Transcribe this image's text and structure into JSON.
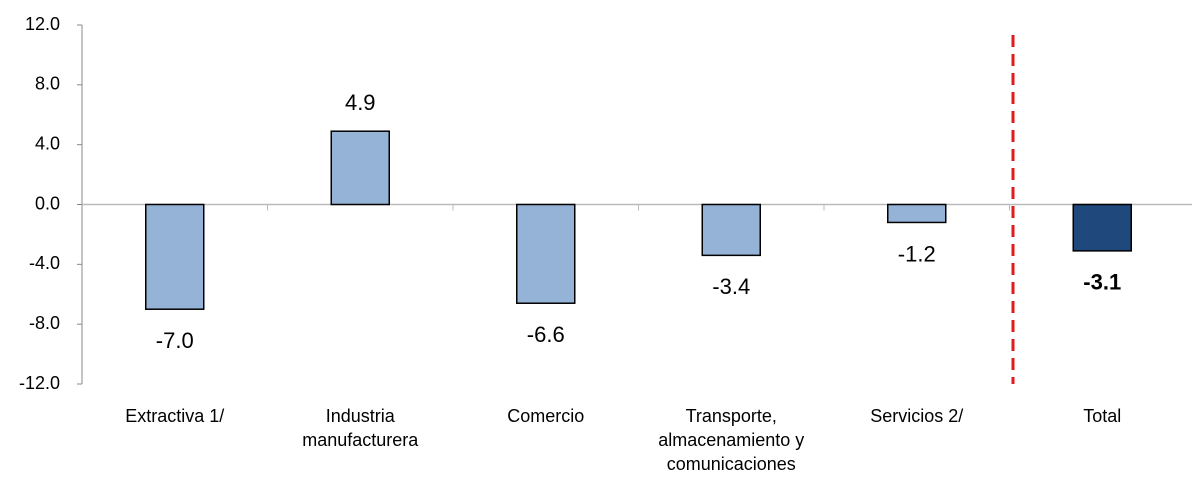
{
  "chart_data": {
    "type": "bar",
    "categories": [
      "Extractiva 1/",
      "Industria manufacturera",
      "Comercio",
      "Transporte, almacenamiento y comunicaciones",
      "Servicios 2/",
      "Total"
    ],
    "values": [
      -7.0,
      4.9,
      -6.6,
      -3.4,
      -1.2,
      -3.1
    ],
    "value_labels": [
      "-7.0",
      "4.9",
      "-6.6",
      "-3.4",
      "-1.2",
      "-3.1"
    ],
    "colors": [
      "#95b3d7",
      "#95b3d7",
      "#95b3d7",
      "#95b3d7",
      "#95b3d7",
      "#1f497d"
    ],
    "ylim": [
      -12,
      12
    ],
    "yticks": [
      {
        "value": -12,
        "label": "-12.0"
      },
      {
        "value": -8,
        "label": "-8.0"
      },
      {
        "value": -4,
        "label": "-4.0"
      },
      {
        "value": 0,
        "label": "0.0"
      },
      {
        "value": 4,
        "label": "4.0"
      },
      {
        "value": 8,
        "label": "8.0"
      },
      {
        "value": 12,
        "label": "12.0"
      }
    ],
    "grid": false
  }
}
